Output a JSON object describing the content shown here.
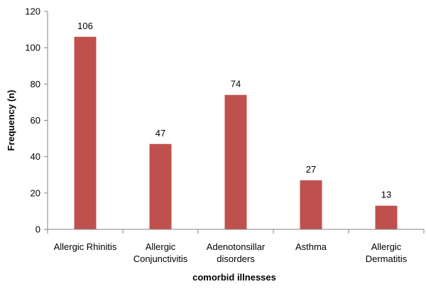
{
  "chart_data": {
    "type": "bar",
    "categories": [
      [
        "Allergic Rhinitis"
      ],
      [
        "Allergic",
        "Conjunctivitis"
      ],
      [
        "Adenotonsillar",
        "disorders"
      ],
      [
        "Asthma"
      ],
      [
        "Allergic",
        "Dermatitis"
      ]
    ],
    "values": [
      106,
      47,
      74,
      27,
      13
    ],
    "data_labels": [
      "106",
      "47",
      "74",
      "27",
      "13"
    ],
    "title": "",
    "xlabel": "comorbid illnesses",
    "ylabel": "Frequency (n)",
    "ylim": [
      0,
      120
    ],
    "yticks": [
      0,
      20,
      40,
      60,
      80,
      100,
      120
    ],
    "ytick_labels": [
      "0",
      "20",
      "40",
      "60",
      "80",
      "100",
      "120"
    ],
    "grid": false,
    "legend": "none",
    "colors": {
      "bar": "#C0504D",
      "axis": "#868686"
    }
  }
}
